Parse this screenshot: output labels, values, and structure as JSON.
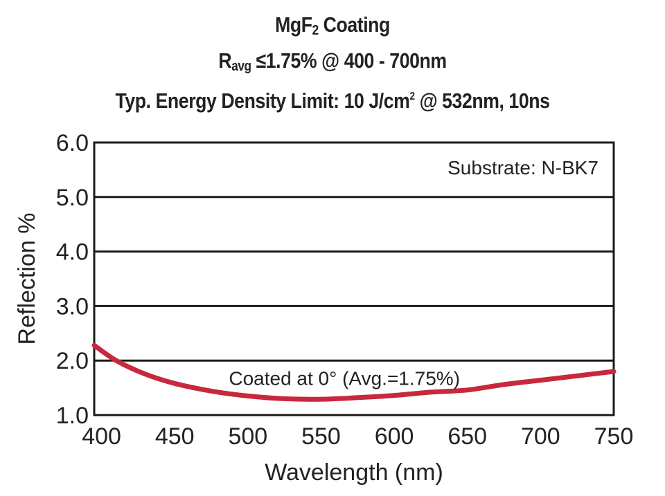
{
  "chart_data": {
    "type": "line",
    "title_parts": {
      "line1_main": "MgF",
      "line1_sub": "2",
      "line1_tail": " Coating",
      "line2_main": "R",
      "line2_sub": "avg",
      "line2_tail": " ≤1.75% @ 400 - 700nm",
      "line3_head": "Typ. Energy Density Limit: 10 J/cm",
      "line3_sup": "2",
      "line3_tail": " @ 532nm, 10ns"
    },
    "xlabel": "Wavelength (nm)",
    "ylabel": "Reflection %",
    "xlim": [
      395,
      750
    ],
    "ylim": [
      1.0,
      6.0
    ],
    "x_ticks": [
      "400",
      "450",
      "500",
      "550",
      "600",
      "650",
      "700",
      "750"
    ],
    "y_ticks": [
      "1.0",
      "2.0",
      "3.0",
      "4.0",
      "5.0",
      "6.0"
    ],
    "grid": "horizontal",
    "annotations": {
      "substrate": "Substrate: N-BK7",
      "series_label": "Coated at 0°  (Avg.=1.75%)"
    },
    "colors": {
      "line": "#c8283c",
      "axis": "#1a1a1a",
      "text": "#222222"
    },
    "series": [
      {
        "x": [
          395,
          410,
          430,
          450,
          475,
          500,
          525,
          550,
          575,
          600,
          625,
          650,
          675,
          700,
          725,
          750
        ],
        "y": [
          2.28,
          2.0,
          1.75,
          1.58,
          1.44,
          1.35,
          1.3,
          1.29,
          1.32,
          1.36,
          1.42,
          1.46,
          1.56,
          1.64,
          1.72,
          1.8
        ]
      }
    ]
  }
}
